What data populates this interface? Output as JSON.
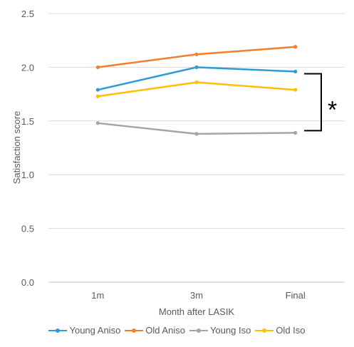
{
  "chart_data": {
    "type": "line",
    "categories": [
      "1m",
      "3m",
      "Final"
    ],
    "xlabel": "Month after LASIK",
    "ylabel": "Satisfaction score",
    "ylim": [
      0,
      2.5
    ],
    "yticks": [
      "0.0",
      "0.5",
      "1.0",
      "1.5",
      "2.0",
      "2.5"
    ],
    "grid": true,
    "legend": "bottom",
    "series": [
      {
        "name": "Young Aniso",
        "color": "#2E9BD6",
        "values": [
          1.79,
          2.0,
          1.96
        ]
      },
      {
        "name": "Old Aniso",
        "color": "#F07F2E",
        "values": [
          2.0,
          2.12,
          2.19
        ]
      },
      {
        "name": "Young Iso",
        "color": "#A5A5A5",
        "values": [
          1.48,
          1.38,
          1.39
        ]
      },
      {
        "name": "Old Iso",
        "color": "#FFC000",
        "values": [
          1.73,
          1.86,
          1.79
        ]
      }
    ],
    "annotation": {
      "text": "*",
      "bracket_from": 1.94,
      "bracket_to": 1.41
    }
  }
}
